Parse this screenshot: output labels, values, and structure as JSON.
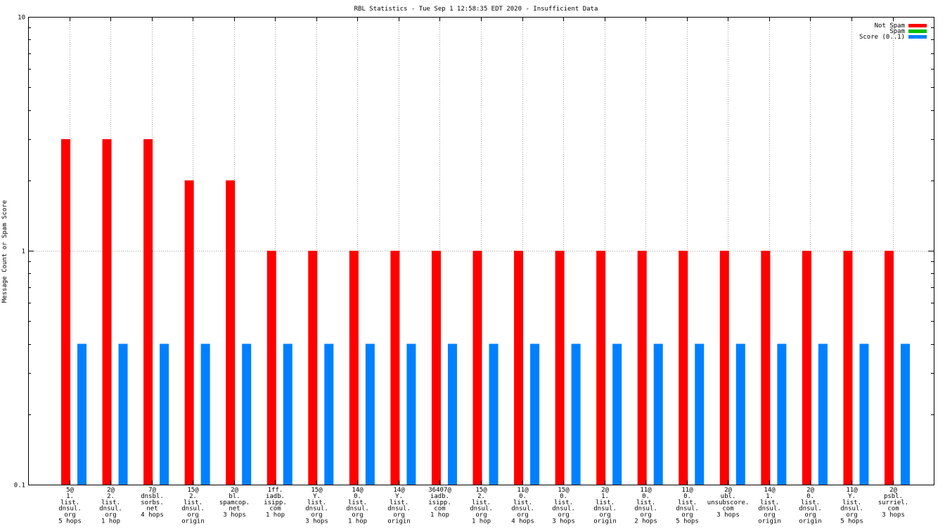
{
  "chart_data": {
    "type": "bar",
    "title": "RBL Statistics - Tue Sep  1 12:58:35 EDT 2020 - Insufficient Data",
    "ylabel": "Message Count or Spam Score",
    "xlabel": "",
    "yscale": "log",
    "ylim": [
      0.1,
      10
    ],
    "yticks": [
      "0.1",
      "1",
      "10"
    ],
    "grid": true,
    "legend_position": "top-right",
    "categories": [
      [
        "5@",
        "1.",
        "list.",
        "dnsul.",
        "org",
        "5 hops"
      ],
      [
        "2@",
        "2.",
        "list.",
        "dnsul.",
        "org",
        "1 hop"
      ],
      [
        "7@",
        "dnsbl.",
        "sorbs.",
        "net",
        "4 hops"
      ],
      [
        "15@",
        "2.",
        "list.",
        "dnsul.",
        "org",
        "origin"
      ],
      [
        "2@",
        "bl.",
        "spamcop.",
        "net",
        "3 hops"
      ],
      [
        "1ff.",
        "iadb.",
        "isipp.",
        "com",
        "1 hop"
      ],
      [
        "15@",
        "Y.",
        "list.",
        "dnsul.",
        "org",
        "3 hops"
      ],
      [
        "14@",
        "0.",
        "list.",
        "dnsul.",
        "org",
        "1 hop"
      ],
      [
        "14@",
        "Y.",
        "list.",
        "dnsul.",
        "org",
        "origin"
      ],
      [
        "36407@",
        "iadb.",
        "isipp.",
        "com",
        "1 hop"
      ],
      [
        "15@",
        "2.",
        "list.",
        "dnsul.",
        "org",
        "1 hop"
      ],
      [
        "11@",
        "0.",
        "list.",
        "dnsul.",
        "org",
        "4 hops"
      ],
      [
        "15@",
        "0.",
        "list.",
        "dnsul.",
        "org",
        "3 hops"
      ],
      [
        "2@",
        "1.",
        "list.",
        "dnsul.",
        "org",
        "origin"
      ],
      [
        "11@",
        "0.",
        "list.",
        "dnsul.",
        "org",
        "2 hops"
      ],
      [
        "11@",
        "0.",
        "list.",
        "dnsul.",
        "org",
        "5 hops"
      ],
      [
        "2@",
        "ubl.",
        "unsubscore.",
        "com",
        "3 hops"
      ],
      [
        "14@",
        "1.",
        "list.",
        "dnsul.",
        "org",
        "origin"
      ],
      [
        "2@",
        "0.",
        "list.",
        "dnsul.",
        "org",
        "origin"
      ],
      [
        "11@",
        "Y.",
        "list.",
        "dnsul.",
        "org",
        "5 hops"
      ],
      [
        "2@",
        "psbl.",
        "surriel.",
        "com",
        "3 hops"
      ]
    ],
    "series": [
      {
        "name": "Not Spam",
        "color": "#ff0000",
        "values": [
          3,
          3,
          3,
          2,
          2,
          1,
          1,
          1,
          1,
          1,
          1,
          1,
          1,
          1,
          1,
          1,
          1,
          1,
          1,
          1,
          1
        ]
      },
      {
        "name": "Spam",
        "color": "#00c000",
        "values": [
          0,
          0,
          0,
          0,
          0,
          0,
          0,
          0,
          0,
          0,
          0,
          0,
          0,
          0,
          0,
          0,
          0,
          0,
          0,
          0,
          0
        ]
      },
      {
        "name": "Score (0..1)",
        "color": "#0080ff",
        "values": [
          0.4,
          0.4,
          0.4,
          0.4,
          0.4,
          0.4,
          0.4,
          0.4,
          0.4,
          0.4,
          0.4,
          0.4,
          0.4,
          0.4,
          0.4,
          0.4,
          0.4,
          0.4,
          0.4,
          0.4,
          0.4
        ]
      }
    ]
  }
}
